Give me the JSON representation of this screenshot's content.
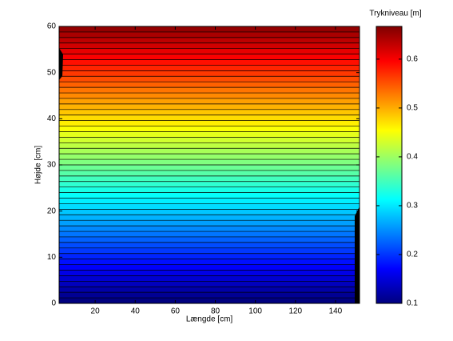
{
  "chart_data": {
    "type": "contour",
    "xlabel": "Længde [cm]",
    "ylabel": "Højde [cm]",
    "colorbar_label": "Trykniveau [m]",
    "colormap": "jet",
    "xlim": [
      2,
      152
    ],
    "ylim": [
      0,
      60
    ],
    "clim": [
      0.1,
      0.667
    ],
    "xticks": [
      20,
      40,
      60,
      80,
      100,
      120,
      140
    ],
    "yticks": [
      0,
      10,
      20,
      30,
      40,
      50,
      60
    ],
    "cticks": [
      0.1,
      0.2,
      0.3,
      0.4,
      0.5,
      0.6
    ],
    "lines": {
      "y": [
        1.2,
        2.4,
        3.6,
        4.8,
        6,
        7.2,
        8.4,
        9.6,
        10.8,
        12,
        13.2,
        14.4,
        15.6,
        16.8,
        18,
        19.2,
        20.4,
        21.6,
        22.8,
        24,
        25.2,
        26.4,
        27.6,
        28.8,
        30,
        31.2,
        32.4,
        33.6,
        34.8,
        36,
        37.2,
        38.4,
        39.6,
        40.8,
        42,
        43.2,
        44.4,
        45.6,
        46.8,
        48,
        49.2,
        50.4,
        51.6,
        52.8,
        54,
        55.2,
        56.4,
        57.6,
        58.8
      ],
      "level": [
        0.111,
        0.123,
        0.134,
        0.145,
        0.157,
        0.168,
        0.179,
        0.191,
        0.202,
        0.213,
        0.225,
        0.236,
        0.247,
        0.259,
        0.27,
        0.281,
        0.293,
        0.304,
        0.315,
        0.327,
        0.338,
        0.349,
        0.361,
        0.372,
        0.384,
        0.395,
        0.406,
        0.418,
        0.429,
        0.44,
        0.452,
        0.463,
        0.474,
        0.486,
        0.497,
        0.508,
        0.52,
        0.531,
        0.542,
        0.554,
        0.565,
        0.576,
        0.588,
        0.599,
        0.61,
        0.622,
        0.633,
        0.644,
        0.656
      ]
    }
  }
}
